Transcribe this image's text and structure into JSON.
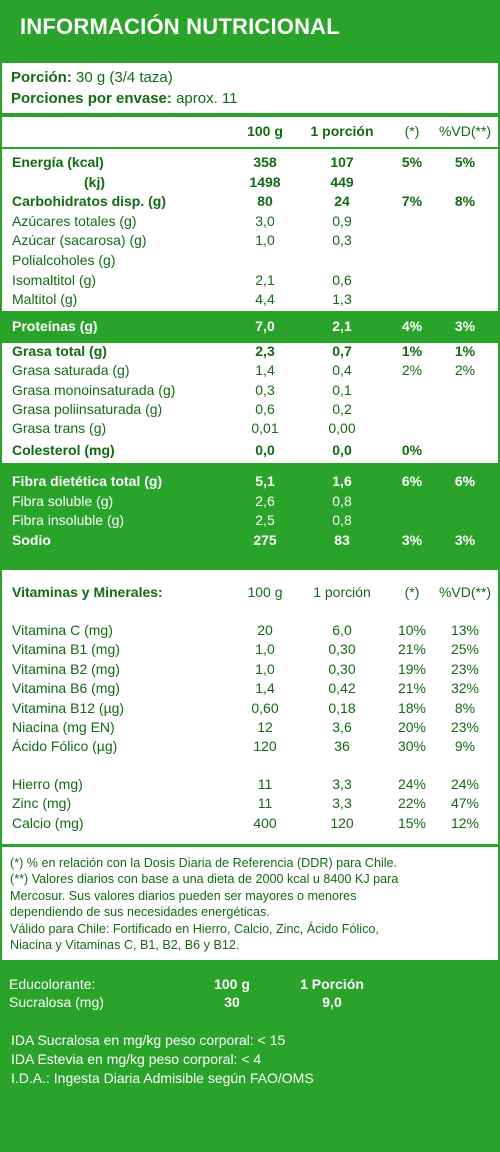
{
  "title": "INFORMACIÓN NUTRICIONAL",
  "portion": {
    "portion_label": "Porción:",
    "portion_value": "30 g (3/4 taza)",
    "servings_label": "Porciones por envase:",
    "servings_value": "aprox. 11"
  },
  "main_header": [
    "100 g",
    "1 porción",
    "(*)",
    "%VD(**)"
  ],
  "main_rows": [
    {
      "name": "Energía (kcal)",
      "g100": "358",
      "portion": "107",
      "dv": "5%",
      "vd": "5%",
      "bold": true
    },
    {
      "name": "(kj)",
      "g100": "1498",
      "portion": "449",
      "dv": "",
      "vd": "",
      "bold": true
    },
    {
      "name": "Carbohidratos disp. (g)",
      "g100": "80",
      "portion": "24",
      "dv": "7%",
      "vd": "8%",
      "bold": true
    },
    {
      "name": "Azúcares totales (g)",
      "g100": "3,0",
      "portion": "0,9",
      "dv": "",
      "vd": "",
      "bold": false
    },
    {
      "name": "Azúcar (sacarosa) (g)",
      "g100": "1,0",
      "portion": "0,3",
      "dv": "",
      "vd": "",
      "bold": false
    },
    {
      "name": "Polialcoholes (g)",
      "g100": "",
      "portion": "",
      "dv": "",
      "vd": "",
      "bold": false
    },
    {
      "name": "Isomaltitol (g)",
      "g100": "2,1",
      "portion": "0,6",
      "dv": "",
      "vd": "",
      "bold": false
    },
    {
      "name": "Maltitol (g)",
      "g100": "4,4",
      "portion": "1,3",
      "dv": "",
      "vd": "",
      "bold": false
    }
  ],
  "protein_row": {
    "name": "Proteínas (g)",
    "g100": "7,0",
    "portion": "2,1",
    "dv": "4%",
    "vd": "3%"
  },
  "fat_rows": [
    {
      "name": "Grasa total (g)",
      "g100": "2,3",
      "portion": "0,7",
      "dv": "1%",
      "vd": "1%",
      "bold": true
    },
    {
      "name": "Grasa saturada (g)",
      "g100": "1,4",
      "portion": "0,4",
      "dv": "2%",
      "vd": "2%",
      "bold": false
    },
    {
      "name": "Grasa monoinsaturada (g)",
      "g100": "0,3",
      "portion": "0,1",
      "dv": "",
      "vd": "",
      "bold": false
    },
    {
      "name": "Grasa poliinsaturada (g)",
      "g100": "0,6",
      "portion": "0,2",
      "dv": "",
      "vd": "",
      "bold": false
    },
    {
      "name": "Grasa trans (g)",
      "g100": "0,01",
      "portion": "0,00",
      "dv": "",
      "vd": "",
      "bold": false
    },
    {
      "name": "Colesterol (mg)",
      "g100": "0,0",
      "portion": "0,0",
      "dv": "0%",
      "vd": "",
      "bold": true
    }
  ],
  "fiber_rows": [
    {
      "name": "Fibra dietética total (g)",
      "g100": "5,1",
      "portion": "1,6",
      "dv": "6%",
      "vd": "6%",
      "bold": true
    },
    {
      "name": "Fibra soluble (g)",
      "g100": "2,6",
      "portion": "0,8",
      "dv": "",
      "vd": "",
      "bold": false
    },
    {
      "name": "Fibra insoluble (g)",
      "g100": "2,5",
      "portion": "0,8",
      "dv": "",
      "vd": "",
      "bold": false
    },
    {
      "name": "Sodio",
      "g100": "275",
      "portion": "83",
      "dv": "3%",
      "vd": "3%",
      "bold": true
    }
  ],
  "vitamins_header": {
    "name": "Vitaminas y Minerales:",
    "cols": [
      "100 g",
      "1 porción",
      "(*)",
      "%VD(**)"
    ]
  },
  "vitamins_rows": [
    {
      "name": "Vitamina C (mg)",
      "g100": "20",
      "portion": "6,0",
      "dv": "10%",
      "vd": "13%"
    },
    {
      "name": "Vitamina B1 (mg)",
      "g100": "1,0",
      "portion": "0,30",
      "dv": "21%",
      "vd": "25%"
    },
    {
      "name": "Vitamina B2 (mg)",
      "g100": "1,0",
      "portion": "0,30",
      "dv": "19%",
      "vd": "23%"
    },
    {
      "name": "Vitamina B6 (mg)",
      "g100": "1,4",
      "portion": "0,42",
      "dv": "21%",
      "vd": "32%"
    },
    {
      "name": "Vitamina B12 (µg)",
      "g100": "0,60",
      "portion": "0,18",
      "dv": "18%",
      "vd": "8%"
    },
    {
      "name": "Niacina (mg EN)",
      "g100": "12",
      "portion": "3,6",
      "dv": "20%",
      "vd": "23%"
    },
    {
      "name": "Ácido Fólico (µg)",
      "g100": "120",
      "portion": "36",
      "dv": "30%",
      "vd": "9%"
    }
  ],
  "minerals_rows": [
    {
      "name": "Hierro (mg)",
      "g100": "11",
      "portion": "3,3",
      "dv": "24%",
      "vd": "24%"
    },
    {
      "name": "Zinc (mg)",
      "g100": "11",
      "portion": "3,3",
      "dv": "22%",
      "vd": "47%"
    },
    {
      "name": "Calcio (mg)",
      "g100": "400",
      "portion": "120",
      "dv": "15%",
      "vd": "12%"
    }
  ],
  "footnotes": [
    "(*) % en relación con la Dosis Diaria de Referencia (DDR) para Chile.",
    "(**) Valores diarios con base a una dieta de 2000 kcal u 8400 KJ para",
    "Mercosur. Sus valores diarios pueden ser mayores o menores",
    "dependiendo de sus necesidades energéticas.",
    "Válido para Chile: Fortificado en Hierro, Calcio, Zinc, Ácido Fólico,",
    "Niacina y Vitaminas C, B1, B2, B6 y B12."
  ],
  "sweeteners": {
    "header_name": "Educolorante:",
    "header_cols": [
      "100 g",
      "1 Porción"
    ],
    "row_name": "Sucralosa (mg)",
    "row_values": [
      "30",
      "9,0"
    ]
  },
  "ida_lines": [
    "IDA Sucralosa en mg/kg peso corporal: < 15",
    "IDA Estevia en mg/kg peso corporal: < 4",
    "I.D.A.: Ingesta Diaria Admisible según FAO/OMS"
  ],
  "colors": {
    "green": "#29a329",
    "text": "#126b12",
    "white": "#ffffff"
  }
}
